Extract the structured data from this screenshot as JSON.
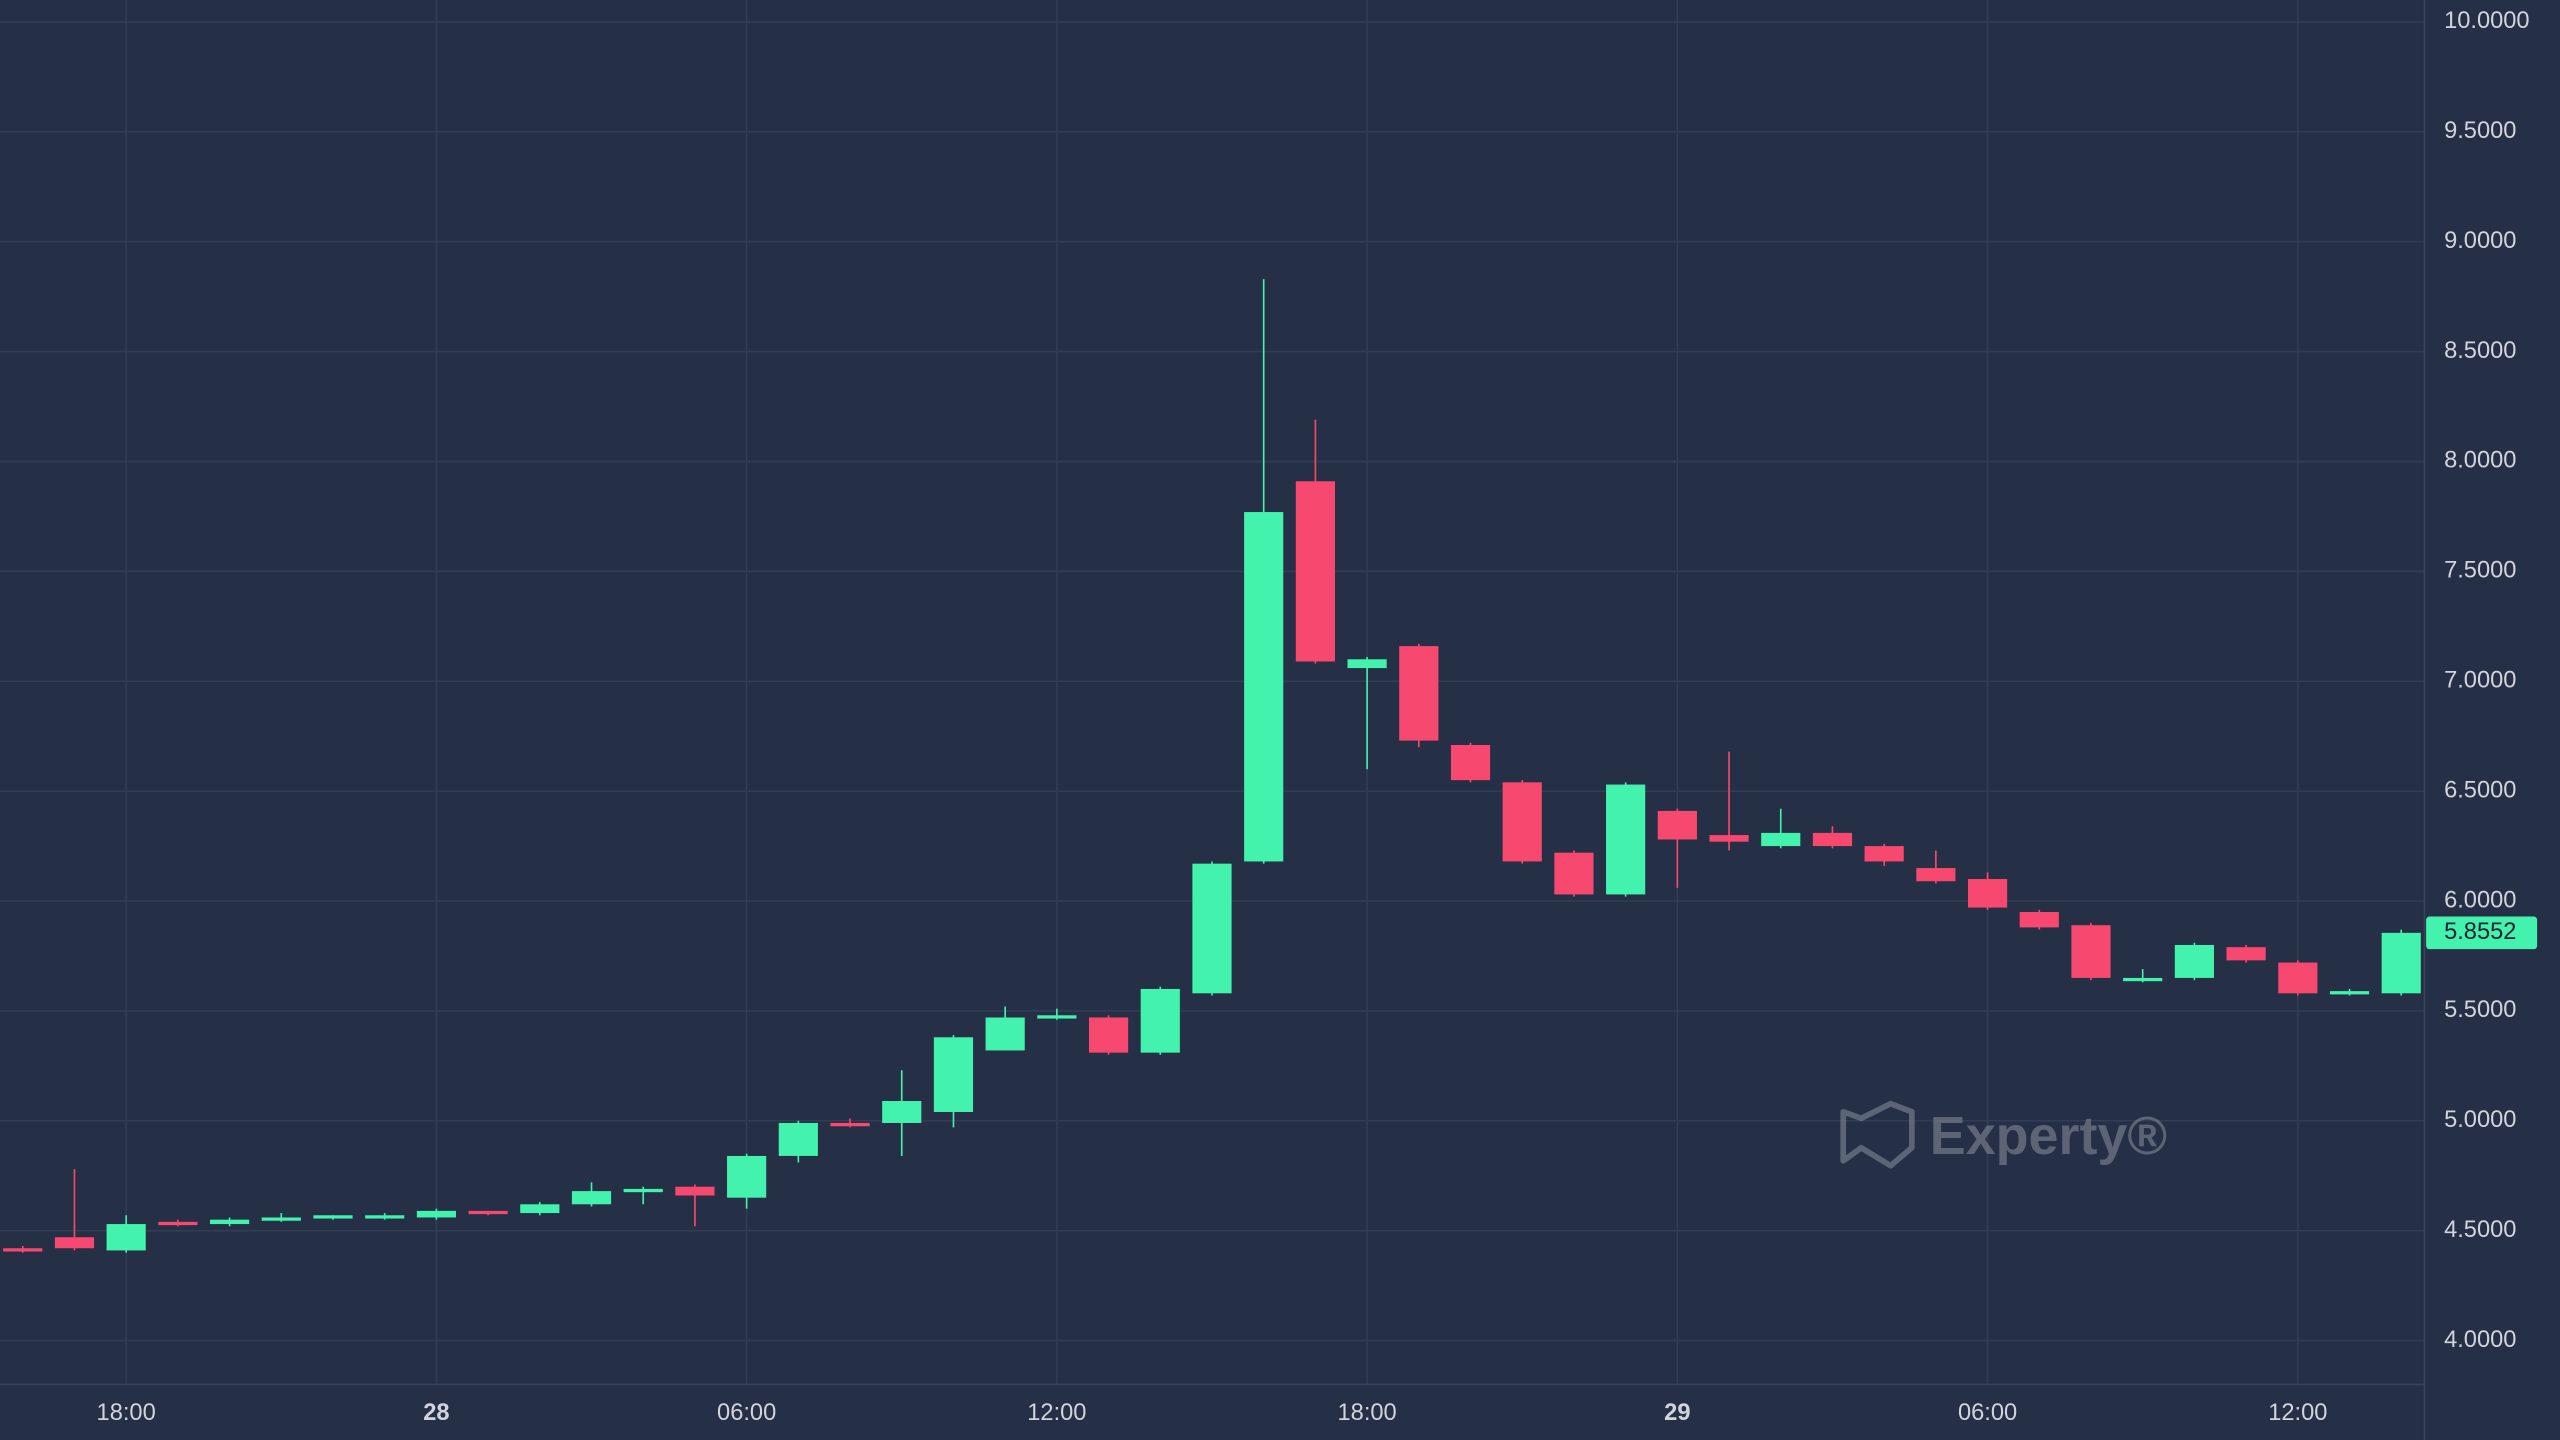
{
  "chart_data": {
    "type": "candlestick",
    "x": [
      0,
      1,
      2,
      3,
      4,
      5,
      6,
      7,
      8,
      9,
      10,
      11,
      12,
      13,
      14,
      15,
      16,
      17,
      18,
      19,
      20,
      21,
      22,
      23,
      24,
      25,
      26,
      27,
      28,
      29,
      30,
      31,
      32,
      33,
      34,
      35,
      36,
      37,
      38,
      39,
      40,
      41,
      42,
      43,
      44,
      45,
      46
    ],
    "open": [
      4.42,
      4.47,
      4.41,
      4.54,
      4.53,
      4.55,
      4.56,
      4.56,
      4.56,
      4.59,
      4.58,
      4.62,
      4.68,
      4.7,
      4.65,
      4.84,
      4.99,
      4.99,
      5.04,
      5.32,
      5.47,
      5.47,
      5.31,
      5.58,
      6.18,
      7.91,
      7.06,
      7.16,
      6.71,
      6.54,
      6.22,
      6.03,
      6.41,
      6.3,
      6.25,
      6.31,
      6.25,
      6.15,
      6.1,
      5.95,
      5.89,
      5.64,
      5.65,
      5.79,
      5.72,
      5.58,
      5.58
    ],
    "high": [
      4.43,
      4.78,
      4.57,
      4.55,
      4.56,
      4.58,
      4.57,
      4.58,
      4.6,
      4.59,
      4.63,
      4.72,
      4.7,
      4.71,
      4.85,
      5.0,
      5.01,
      5.23,
      5.39,
      5.52,
      5.51,
      5.48,
      5.61,
      6.18,
      8.83,
      8.19,
      7.11,
      7.17,
      6.72,
      6.55,
      6.23,
      6.54,
      6.42,
      6.68,
      6.42,
      6.34,
      6.26,
      6.23,
      6.13,
      5.96,
      5.9,
      5.69,
      5.81,
      5.8,
      5.73,
      5.6,
      5.87
    ],
    "low": [
      4.4,
      4.41,
      4.4,
      4.52,
      4.52,
      4.54,
      4.55,
      4.55,
      4.55,
      4.57,
      4.57,
      4.61,
      4.62,
      4.52,
      4.6,
      4.81,
      4.97,
      4.84,
      4.97,
      5.32,
      5.46,
      5.3,
      5.3,
      5.57,
      6.17,
      7.08,
      6.6,
      6.7,
      6.54,
      6.17,
      6.02,
      6.02,
      6.06,
      6.23,
      6.24,
      6.24,
      6.16,
      6.08,
      5.96,
      5.87,
      5.64,
      5.63,
      5.64,
      5.72,
      5.57,
      5.57,
      5.57
    ],
    "close": [
      4.41,
      4.42,
      4.53,
      4.53,
      4.55,
      4.56,
      4.57,
      4.57,
      4.59,
      4.58,
      4.62,
      4.68,
      4.69,
      4.66,
      4.84,
      4.99,
      4.98,
      5.09,
      5.38,
      5.47,
      5.48,
      5.31,
      5.6,
      6.17,
      7.77,
      7.09,
      7.1,
      6.73,
      6.55,
      6.18,
      6.03,
      6.53,
      6.28,
      6.27,
      6.31,
      6.25,
      6.18,
      6.09,
      5.97,
      5.88,
      5.65,
      5.65,
      5.8,
      5.73,
      5.58,
      5.59,
      5.8552
    ],
    "up_color": "#42f2ad",
    "down_color": "#f7496f",
    "xlim": [
      -0.44,
      46.45
    ],
    "ylim": [
      3.8,
      10.1
    ],
    "xticks": [
      {
        "value": 2,
        "label": "18:00"
      },
      {
        "value": 8,
        "label": "28",
        "bold": true
      },
      {
        "value": 14,
        "label": "06:00"
      },
      {
        "value": 20,
        "label": "12:00"
      },
      {
        "value": 26,
        "label": "18:00"
      },
      {
        "value": 32,
        "label": "29",
        "bold": true
      },
      {
        "value": 38,
        "label": "06:00"
      },
      {
        "value": 44,
        "label": "12:00"
      }
    ],
    "yticks": [
      {
        "value": 4,
        "label": "4.0000"
      },
      {
        "value": 4.5,
        "label": "4.5000"
      },
      {
        "value": 5,
        "label": "5.0000"
      },
      {
        "value": 5.5,
        "label": "5.5000"
      },
      {
        "value": 6,
        "label": "6.0000"
      },
      {
        "value": 6.5,
        "label": "6.5000"
      },
      {
        "value": 7,
        "label": "7.0000"
      },
      {
        "value": 7.5,
        "label": "7.5000"
      },
      {
        "value": 8,
        "label": "8.0000"
      },
      {
        "value": 8.5,
        "label": "8.5000"
      },
      {
        "value": 9,
        "label": "9.0000"
      },
      {
        "value": 9.5,
        "label": "9.5000"
      },
      {
        "value": 10,
        "label": "10.0000"
      }
    ],
    "grid": true,
    "last_price": {
      "value": 5.8552,
      "label": "5.8552"
    },
    "watermark": "Experty®"
  }
}
